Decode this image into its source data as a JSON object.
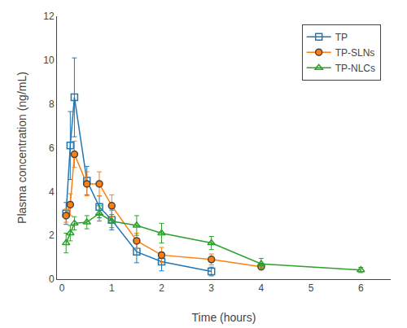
{
  "chart_data": {
    "type": "line",
    "xlabel": "Time (hours)",
    "ylabel": "Plasma concentration (ng/mL)",
    "xlim": [
      -0.1,
      6.6
    ],
    "ylim": [
      0,
      12
    ],
    "xticks": [
      0,
      1,
      2,
      3,
      4,
      5,
      6
    ],
    "yticks": [
      0,
      2,
      4,
      6,
      8,
      10,
      12
    ],
    "grid": false,
    "legend": "upper right",
    "series": [
      {
        "name": "TP",
        "marker": "square-open",
        "x": [
          0.083,
          0.167,
          0.25,
          0.5,
          0.75,
          1.0,
          1.5,
          2.0,
          3.0
        ],
        "values": [
          3.0,
          6.1,
          8.3,
          4.5,
          3.3,
          2.7,
          1.25,
          0.8,
          0.35
        ],
        "yerr": [
          0.5,
          1.55,
          1.8,
          0.65,
          0.5,
          0.45,
          0.5,
          0.42,
          0.2
        ]
      },
      {
        "name": "TP-SLNs",
        "marker": "circle",
        "x": [
          0.083,
          0.167,
          0.25,
          0.5,
          0.75,
          1.0,
          1.5,
          2.0,
          3.0,
          4.0
        ],
        "values": [
          2.9,
          3.4,
          5.7,
          4.35,
          4.35,
          3.35,
          1.75,
          1.1,
          0.9,
          0.57
        ],
        "yerr": [
          0.3,
          0.5,
          0.6,
          0.55,
          0.55,
          0.5,
          0.35,
          0.35,
          0.25,
          0.15
        ]
      },
      {
        "name": "TP-NLCs",
        "marker": "triangle-up-open",
        "x": [
          0.083,
          0.167,
          0.25,
          0.5,
          0.75,
          1.0,
          1.5,
          2.0,
          3.0,
          4.0,
          6.0
        ],
        "values": [
          1.65,
          2.1,
          2.55,
          2.6,
          3.0,
          2.65,
          2.45,
          2.1,
          1.65,
          0.7,
          0.42
        ],
        "yerr": [
          0.45,
          0.35,
          0.3,
          0.3,
          0.35,
          0.3,
          0.45,
          0.45,
          0.3,
          0.25,
          0.12
        ]
      }
    ]
  }
}
